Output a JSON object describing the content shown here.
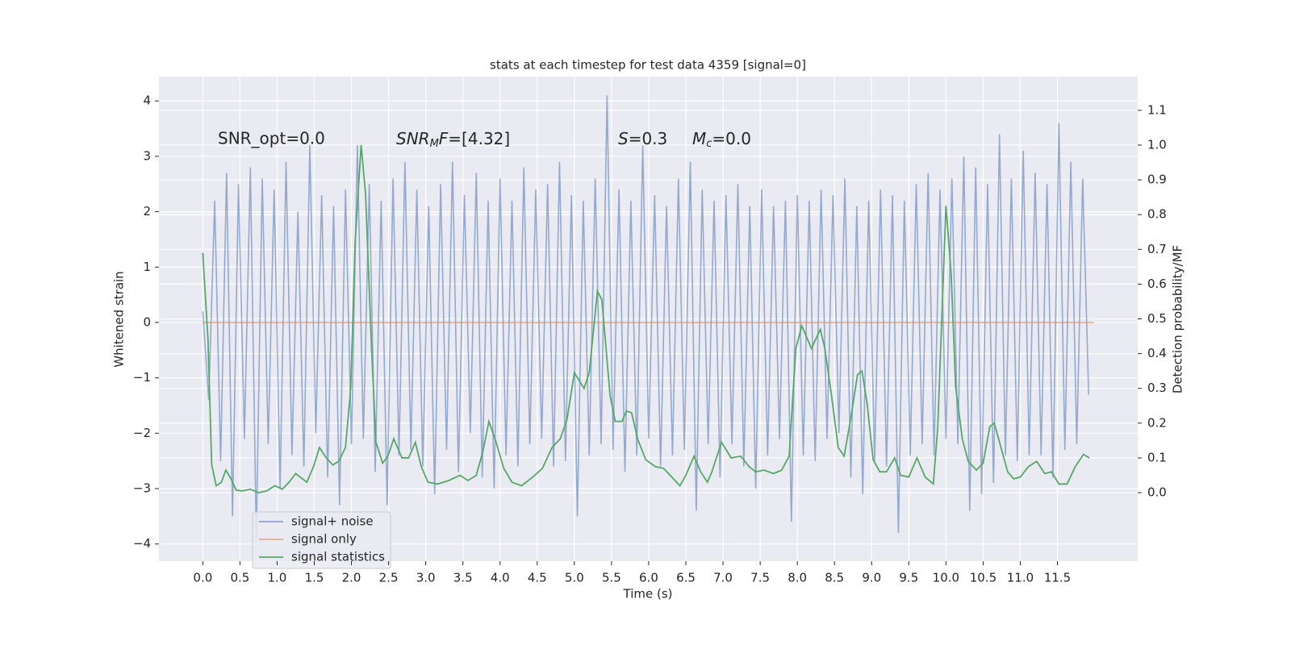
{
  "chart_data": {
    "type": "line",
    "title": "stats at each timestep for test data 4359 [signal=0]",
    "xlabel": "Time (s)",
    "ylabel": "Whitened strain",
    "y2label": "Detection probability/MF",
    "annotations": [
      "SNR_opt=0.0",
      [
        "SNR",
        "M",
        "F",
        "=[4.32]"
      ],
      [
        "S",
        "=0.3"
      ],
      [
        "M",
        "c",
        "=0.0"
      ]
    ],
    "grid": true,
    "legend": "lower left",
    "xlim": [
      -0.59,
      12.58
    ],
    "ylim": [
      -4.31,
      4.44
    ],
    "y2lim": [
      -0.197,
      1.197
    ],
    "xticks": [
      {
        "value": 0,
        "label": "0.0"
      },
      {
        "value": 0.5,
        "label": "0.5"
      },
      {
        "value": 1,
        "label": "1.0"
      },
      {
        "value": 1.5,
        "label": "1.5"
      },
      {
        "value": 2,
        "label": "2.0"
      },
      {
        "value": 2.5,
        "label": "2.5"
      },
      {
        "value": 3,
        "label": "3.0"
      },
      {
        "value": 3.5,
        "label": "3.5"
      },
      {
        "value": 4,
        "label": "4.0"
      },
      {
        "value": 4.5,
        "label": "4.5"
      },
      {
        "value": 5,
        "label": "5.0"
      },
      {
        "value": 5.5,
        "label": "5.5"
      },
      {
        "value": 6,
        "label": "6.0"
      },
      {
        "value": 6.5,
        "label": "6.5"
      },
      {
        "value": 7,
        "label": "7.0"
      },
      {
        "value": 7.5,
        "label": "7.5"
      },
      {
        "value": 8,
        "label": "8.0"
      },
      {
        "value": 8.5,
        "label": "8.5"
      },
      {
        "value": 9,
        "label": "9.0"
      },
      {
        "value": 9.5,
        "label": "9.5"
      },
      {
        "value": 10,
        "label": "10.0"
      },
      {
        "value": 10.5,
        "label": "10.5"
      },
      {
        "value": 11,
        "label": "11.0"
      },
      {
        "value": 11.5,
        "label": "11.5"
      }
    ],
    "yticks": [
      {
        "value": -4,
        "label": "−4"
      },
      {
        "value": -3,
        "label": "−3"
      },
      {
        "value": -2,
        "label": "−2"
      },
      {
        "value": -1,
        "label": "−1"
      },
      0,
      1,
      2,
      3,
      4
    ],
    "y2ticks": [
      {
        "value": 0,
        "label": "0.0"
      },
      {
        "value": 0.1,
        "label": "0.1"
      },
      {
        "value": 0.2,
        "label": "0.2"
      },
      {
        "value": 0.3,
        "label": "0.3"
      },
      {
        "value": 0.4,
        "label": "0.4"
      },
      {
        "value": 0.5,
        "label": "0.5"
      },
      {
        "value": 0.6,
        "label": "0.6"
      },
      {
        "value": 0.7,
        "label": "0.7"
      },
      {
        "value": 0.8,
        "label": "0.8"
      },
      {
        "value": 0.9,
        "label": "0.9"
      },
      {
        "value": 1,
        "label": "1.0"
      },
      {
        "value": 1.1,
        "label": "1.1"
      }
    ],
    "series": [
      {
        "name": "signal+ noise",
        "color": "#4c72b0",
        "x": [
          0,
          0.08,
          0.16,
          0.24,
          0.32,
          0.4,
          0.48,
          0.56,
          0.64,
          0.72,
          0.8,
          0.88,
          0.96,
          1.04,
          1.12,
          1.2,
          1.28,
          1.36,
          1.44,
          1.52,
          1.6,
          1.68,
          1.76,
          1.84,
          1.92,
          2,
          2.08,
          2.16,
          2.24,
          2.32,
          2.4,
          2.48,
          2.56,
          2.64,
          2.72,
          2.8,
          2.88,
          2.96,
          3.04,
          3.12,
          3.2,
          3.28,
          3.36,
          3.44,
          3.52,
          3.6,
          3.68,
          3.76,
          3.84,
          3.92,
          4,
          4.08,
          4.16,
          4.24,
          4.32,
          4.4,
          4.48,
          4.56,
          4.64,
          4.72,
          4.8,
          4.88,
          4.96,
          5.04,
          5.12,
          5.2,
          5.28,
          5.36,
          5.44,
          5.52,
          5.6,
          5.68,
          5.76,
          5.84,
          5.92,
          6,
          6.08,
          6.16,
          6.24,
          6.32,
          6.4,
          6.48,
          6.56,
          6.64,
          6.72,
          6.8,
          6.88,
          6.96,
          7.04,
          7.12,
          7.2,
          7.28,
          7.36,
          7.44,
          7.52,
          7.6,
          7.68,
          7.76,
          7.84,
          7.92,
          8,
          8.08,
          8.16,
          8.24,
          8.32,
          8.4,
          8.48,
          8.56,
          8.64,
          8.72,
          8.8,
          8.88,
          8.96,
          9.04,
          9.12,
          9.2,
          9.28,
          9.36,
          9.44,
          9.52,
          9.6,
          9.68,
          9.76,
          9.84,
          9.92,
          10,
          10.08,
          10.16,
          10.24,
          10.32,
          10.4,
          10.48,
          10.56,
          10.64,
          10.72,
          10.8,
          10.88,
          10.96,
          11.04,
          11.12,
          11.2,
          11.28,
          11.36,
          11.44,
          11.52,
          11.6,
          11.68,
          11.76,
          11.84,
          11.92
        ],
        "values": [
          0.2,
          -1.4,
          2.2,
          -2.5,
          2.7,
          -3.5,
          2.5,
          -2.1,
          2.8,
          -3.9,
          2.6,
          -2.2,
          2.4,
          -3.0,
          2.9,
          -2.4,
          2.0,
          -2.6,
          3.2,
          -2.0,
          2.3,
          -2.8,
          2.1,
          -3.3,
          2.4,
          -2.2,
          3.2,
          -2.1,
          2.5,
          -2.7,
          2.2,
          -3.3,
          2.6,
          -2.4,
          2.9,
          -2.3,
          2.4,
          -2.6,
          2.1,
          -3.1,
          2.5,
          -2.3,
          2.9,
          -2.7,
          2.3,
          -2.0,
          2.7,
          -2.8,
          2.2,
          -3.0,
          2.6,
          -2.4,
          2.2,
          -2.6,
          2.8,
          -2.2,
          2.4,
          -2.1,
          2.5,
          -2.6,
          2.9,
          -2.5,
          2.3,
          -3.5,
          2.2,
          -2.4,
          2.6,
          -2.2,
          4.1,
          -2.3,
          2.4,
          -2.7,
          2.2,
          -2.4,
          3.2,
          -2.1,
          2.3,
          -2.6,
          2.1,
          -2.4,
          2.6,
          -2.3,
          2.9,
          -3.4,
          2.4,
          -2.2,
          2.2,
          -2.8,
          2.3,
          -2.2,
          2.5,
          -2.6,
          2.1,
          -3.0,
          2.4,
          -2.4,
          2.1,
          -2.1,
          2.2,
          -3.6,
          2.3,
          -2.4,
          2.2,
          -2.5,
          2.4,
          -2.1,
          2.3,
          -2.0,
          2.6,
          -2.8,
          2.1,
          -3.1,
          2.2,
          -2.5,
          2.4,
          -2.6,
          2.3,
          -3.8,
          2.2,
          -2.4,
          2.5,
          -2.2,
          2.7,
          -2.4,
          2.4,
          -2.1,
          2.6,
          -2.2,
          3.0,
          -3.4,
          2.8,
          -3.1,
          2.5,
          -2.9,
          3.4,
          -2.4,
          2.6,
          -2.5,
          3.1,
          -2.4,
          2.7,
          -2.4,
          2.5,
          -2.8,
          3.6,
          -2.3,
          2.9,
          -2.2,
          2.6,
          -1.3
        ]
      },
      {
        "name": "signal only",
        "color": "#dd8452",
        "x": [
          0,
          11.99
        ],
        "values": [
          0,
          0
        ]
      },
      {
        "name": "signal statistics",
        "color": "#55a868",
        "axis": "y2",
        "x": [
          0,
          0.07,
          0.12,
          0.18,
          0.25,
          0.31,
          0.38,
          0.45,
          0.53,
          0.64,
          0.75,
          0.86,
          0.97,
          1.07,
          1.16,
          1.25,
          1.4,
          1.49,
          1.57,
          1.66,
          1.75,
          1.83,
          1.92,
          1.99,
          2.05,
          2.13,
          2.19,
          2.27,
          2.33,
          2.42,
          2.49,
          2.57,
          2.68,
          2.77,
          2.86,
          2.94,
          3.03,
          3.16,
          3.31,
          3.46,
          3.57,
          3.68,
          3.77,
          3.85,
          3.94,
          4.05,
          4.16,
          4.29,
          4.44,
          4.57,
          4.7,
          4.81,
          4.9,
          5,
          5.13,
          5.2,
          5.31,
          5.37,
          5.48,
          5.55,
          5.64,
          5.7,
          5.77,
          5.85,
          5.96,
          6.09,
          6.2,
          6.31,
          6.42,
          6.5,
          6.61,
          6.7,
          6.79,
          6.85,
          6.98,
          7.11,
          7.24,
          7.35,
          7.44,
          7.55,
          7.68,
          7.79,
          7.89,
          7.98,
          8.06,
          8.19,
          8.31,
          8.37,
          8.46,
          8.55,
          8.63,
          8.72,
          8.81,
          8.87,
          8.94,
          9.02,
          9.11,
          9.2,
          9.31,
          9.39,
          9.5,
          9.61,
          9.72,
          9.83,
          9.89,
          10,
          10.07,
          10.13,
          10.22,
          10.3,
          10.41,
          10.5,
          10.59,
          10.65,
          10.74,
          10.83,
          10.91,
          11,
          11.11,
          11.22,
          11.33,
          11.42,
          11.52,
          11.63,
          11.74,
          11.85,
          11.93
        ],
        "values": [
          0.69,
          0.44,
          0.08,
          0.02,
          0.03,
          0.065,
          0.04,
          0.007,
          0.005,
          0.01,
          0.0,
          0.005,
          0.02,
          0.01,
          0.03,
          0.055,
          0.03,
          0.075,
          0.13,
          0.1,
          0.08,
          0.09,
          0.13,
          0.3,
          0.72,
          1.0,
          0.86,
          0.42,
          0.145,
          0.085,
          0.105,
          0.155,
          0.1,
          0.1,
          0.145,
          0.075,
          0.03,
          0.025,
          0.035,
          0.05,
          0.035,
          0.05,
          0.12,
          0.205,
          0.15,
          0.07,
          0.03,
          0.02,
          0.045,
          0.07,
          0.13,
          0.155,
          0.21,
          0.345,
          0.3,
          0.345,
          0.58,
          0.555,
          0.28,
          0.205,
          0.205,
          0.235,
          0.23,
          0.155,
          0.095,
          0.075,
          0.07,
          0.045,
          0.02,
          0.05,
          0.105,
          0.06,
          0.03,
          0.06,
          0.145,
          0.1,
          0.105,
          0.075,
          0.06,
          0.065,
          0.055,
          0.065,
          0.105,
          0.415,
          0.48,
          0.415,
          0.47,
          0.415,
          0.28,
          0.13,
          0.105,
          0.215,
          0.34,
          0.35,
          0.255,
          0.095,
          0.06,
          0.06,
          0.1,
          0.05,
          0.045,
          0.1,
          0.045,
          0.025,
          0.19,
          0.825,
          0.63,
          0.305,
          0.155,
          0.09,
          0.065,
          0.085,
          0.19,
          0.2,
          0.13,
          0.06,
          0.04,
          0.045,
          0.075,
          0.09,
          0.055,
          0.06,
          0.025,
          0.025,
          0.075,
          0.11,
          0.1
        ]
      }
    ]
  }
}
